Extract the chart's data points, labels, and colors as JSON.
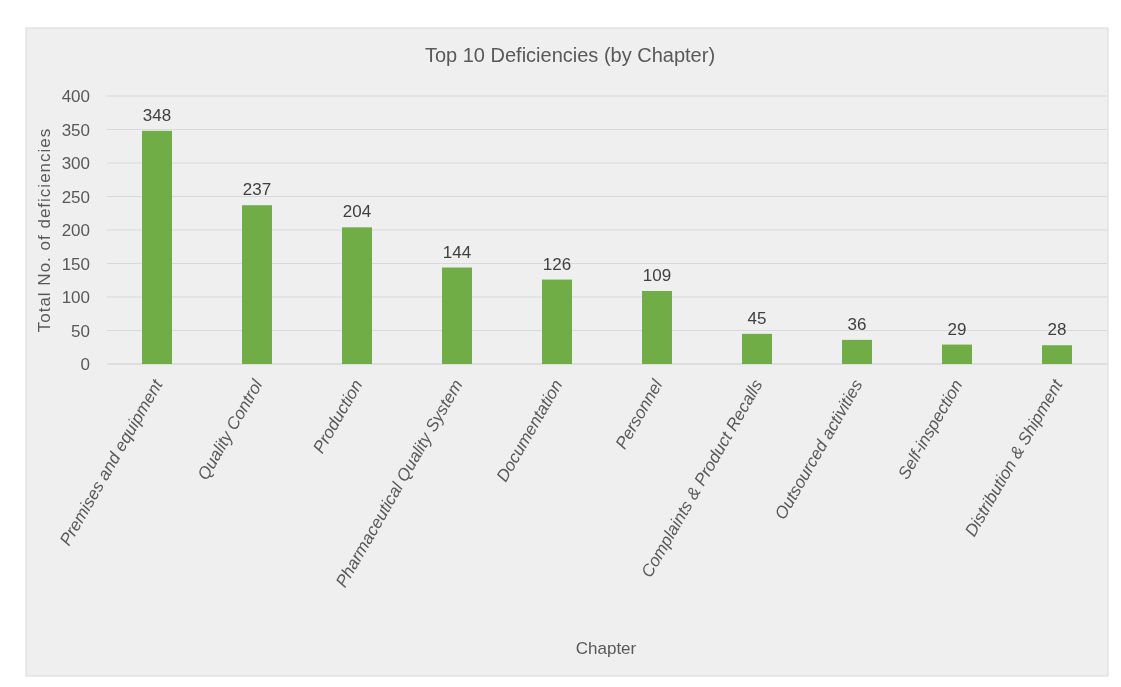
{
  "chart_data": {
    "type": "bar",
    "title": "Top 10 Deficiencies (by Chapter)",
    "xlabel": "Chapter",
    "ylabel": "Total No. of deficiencies",
    "categories": [
      "Premises and equipment",
      "Quality Control",
      "Production",
      "Pharmaceutical Quality System",
      "Documentation",
      "Personnel",
      "Complaints & Product Recalls",
      "Outsourced activities",
      "Self-inspection",
      "Distribution & Shipment"
    ],
    "values": [
      348,
      237,
      204,
      144,
      126,
      109,
      45,
      36,
      29,
      28
    ],
    "color": "#70ad47",
    "ylim": [
      0,
      400
    ],
    "yticks": [
      0,
      50,
      100,
      150,
      200,
      250,
      300,
      350,
      400
    ],
    "grid": "y",
    "data_labels": true
  }
}
